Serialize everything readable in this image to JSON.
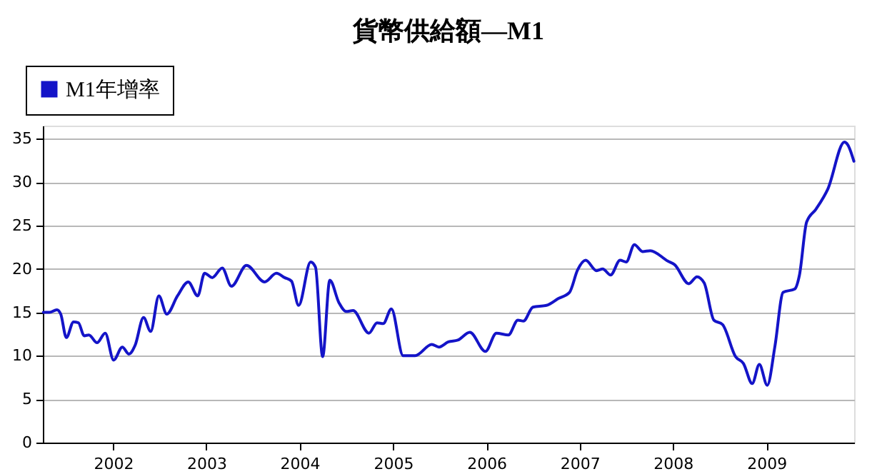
{
  "chart_data": {
    "type": "line",
    "title": "貨幣供給額—M1",
    "x": [
      "2001-04-03",
      "2001-04-27",
      "2001-05-26",
      "2001-06-10",
      "2001-07-02",
      "2001-07-30",
      "2001-08-18",
      "2001-09-10",
      "2001-09-28",
      "2001-10-30",
      "2001-12-01",
      "2002-01-03",
      "2002-02-06",
      "2002-03-04",
      "2002-03-28",
      "2002-04-30",
      "2002-05-28",
      "2002-06-29",
      "2002-07-30",
      "2002-09-10",
      "2002-10-22",
      "2002-11-28",
      "2002-12-25",
      "2003-01-24",
      "2003-03-04",
      "2003-04-09",
      "2003-06-07",
      "2003-08-17",
      "2003-10-02",
      "2003-11-03",
      "2003-11-30",
      "2003-12-28",
      "2004-02-13",
      "2004-03-03",
      "2004-03-31",
      "2004-04-28",
      "2004-06-03",
      "2004-07-01",
      "2004-07-28",
      "2004-09-28",
      "2004-10-30",
      "2004-11-23",
      "2004-12-25",
      "2005-02-09",
      "2005-03-28",
      "2005-06-01",
      "2005-06-29",
      "2005-08-05",
      "2005-09-11",
      "2005-10-28",
      "2005-12-28",
      "2006-02-09",
      "2006-03-28",
      "2006-05-04",
      "2006-05-26",
      "2006-07-02",
      "2006-08-24",
      "2006-10-10",
      "2006-11-22",
      "2006-12-24",
      "2007-01-24",
      "2007-03-08",
      "2007-04-01",
      "2007-05-02",
      "2007-06-08",
      "2007-07-02",
      "2007-08-03",
      "2007-09-04",
      "2007-10-04",
      "2007-12-12",
      "2008-01-07",
      "2008-03-03",
      "2008-04-04",
      "2008-05-02",
      "2008-06-09",
      "2008-07-13",
      "2008-09-02",
      "2008-10-03",
      "2008-11-06",
      "2008-12-04",
      "2009-01-04",
      "2009-02-03",
      "2009-03-07",
      "2009-04-22",
      "2009-05-10",
      "2009-06-07",
      "2009-07-14",
      "2009-08-29",
      "2009-11-02",
      "2009-11-15",
      "2009-12-09"
    ],
    "series": [
      {
        "name": "M1年增率",
        "color": "#1414c8",
        "values": [
          15.0,
          15.0,
          15.3,
          14.8,
          12.1,
          13.9,
          13.8,
          12.3,
          12.4,
          11.5,
          12.6,
          9.5,
          11.0,
          10.2,
          11.2,
          14.4,
          12.8,
          16.9,
          14.8,
          16.9,
          18.5,
          16.9,
          19.5,
          19.0,
          20.1,
          18.0,
          20.4,
          18.5,
          19.5,
          19.0,
          18.6,
          15.8,
          20.8,
          20.2,
          9.9,
          18.7,
          16.1,
          15.1,
          15.2,
          12.6,
          13.8,
          13.7,
          15.4,
          10.0,
          10.0,
          11.3,
          11.0,
          11.6,
          11.8,
          12.7,
          10.5,
          12.6,
          12.4,
          14.1,
          14.0,
          15.6,
          15.8,
          16.6,
          17.3,
          19.9,
          21.0,
          19.8,
          20.0,
          19.3,
          21.0,
          20.8,
          22.8,
          22.0,
          22.1,
          20.9,
          20.5,
          18.3,
          19.1,
          18.4,
          14.1,
          13.6,
          9.9,
          9.1,
          6.8,
          9.0,
          6.6,
          11.1,
          17.3,
          17.7,
          19.3,
          25.4,
          26.9,
          29.2,
          34.6,
          34.3,
          32.4
        ]
      }
    ],
    "xlim": [
      "2001-04-01",
      "2009-12-10"
    ],
    "xticks": [
      {
        "value": "2002-01-01",
        "label": "2002"
      },
      {
        "value": "2003-01-01",
        "label": "2003"
      },
      {
        "value": "2004-01-01",
        "label": "2004"
      },
      {
        "value": "2005-01-01",
        "label": "2005"
      },
      {
        "value": "2006-01-01",
        "label": "2006"
      },
      {
        "value": "2007-01-01",
        "label": "2007"
      },
      {
        "value": "2008-01-01",
        "label": "2008"
      },
      {
        "value": "2009-01-01",
        "label": "2009"
      }
    ],
    "ylim": [
      0,
      36.5
    ],
    "yticks": [
      0,
      5,
      10,
      15,
      20,
      25,
      30,
      35
    ],
    "grid": "y",
    "legend": "top left",
    "marker": "none",
    "line_style": "solid"
  }
}
